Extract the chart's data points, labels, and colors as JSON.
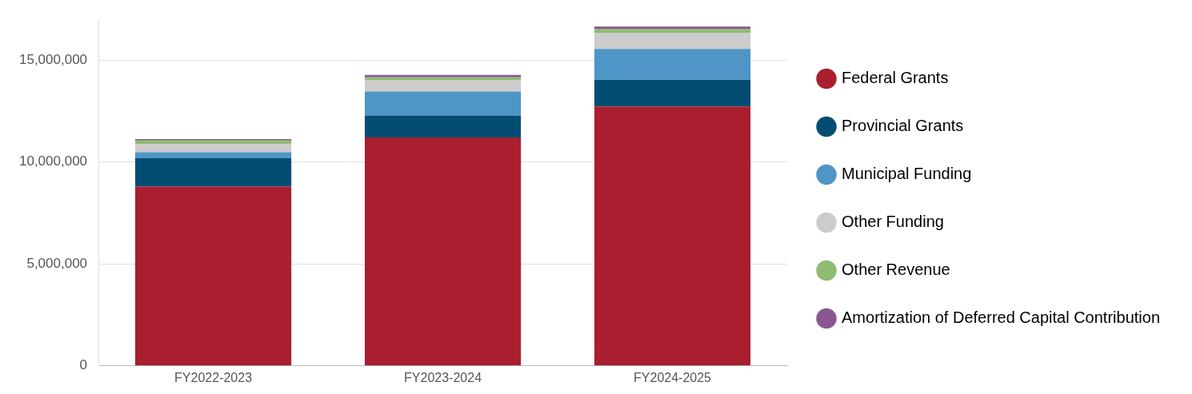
{
  "chart_data": {
    "type": "bar",
    "stacked": true,
    "categories": [
      "FY2022-2023",
      "FY2023-2024",
      "FY2024-2025"
    ],
    "series": [
      {
        "name": "Federal Grants",
        "color": "#a91f2f",
        "values": [
          8790000,
          11210000,
          12720000
        ]
      },
      {
        "name": "Provincial Grants",
        "color": "#034d72",
        "values": [
          1400000,
          1070000,
          1320000
        ]
      },
      {
        "name": "Municipal Funding",
        "color": "#4d96c5",
        "values": [
          290000,
          1180000,
          1510000
        ]
      },
      {
        "name": "Other Funding",
        "color": "#cccccc",
        "values": [
          400000,
          550000,
          770000
        ]
      },
      {
        "name": "Other Revenue",
        "color": "#8fbb73",
        "values": [
          180000,
          150000,
          220000
        ]
      },
      {
        "name": "Amortization of Deferred Capital Contribution",
        "color": "#8a5690",
        "values": [
          70000,
          110000,
          110000
        ]
      }
    ],
    "ylim": [
      0,
      17000000
    ],
    "yticks": [
      {
        "value": 0,
        "label": "0"
      },
      {
        "value": 5000000,
        "label": "5,000,000"
      },
      {
        "value": 10000000,
        "label": "10,000,000"
      },
      {
        "value": 15000000,
        "label": "15,000,000"
      }
    ],
    "grid": "y",
    "legend": "right"
  }
}
